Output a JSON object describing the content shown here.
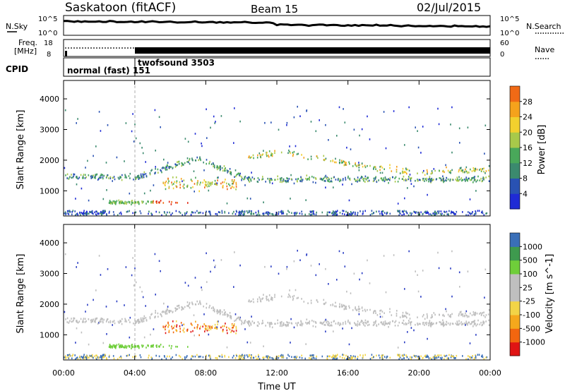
{
  "header": {
    "station": "Saskatoon (fitACF)",
    "beam": "Beam 15",
    "date": "02/Jul/2015"
  },
  "strips": {
    "nsky_label": "N.Sky",
    "nsky_ticks": [
      "10^5",
      "10^0"
    ],
    "nsearch_label": "N.Search",
    "nsearch_ticks": [
      "10^5",
      "10^0"
    ],
    "freq_label": [
      "Freq.",
      "[MHz]"
    ],
    "freq_ticks": [
      "18",
      "8"
    ],
    "nave_label": "Nave",
    "nave_ticks": [
      "60",
      "0"
    ],
    "cpid_label": "CPID",
    "cpid_segments": [
      "normal (fast) 151",
      "twofsound 3503"
    ]
  },
  "colors": {
    "power_scale": [
      "#1f2bd6",
      "#2952b3",
      "#3b8a6e",
      "#49a85a",
      "#a8c94a",
      "#f2d02e",
      "#f5a21c",
      "#f06a16",
      "#e02410"
    ],
    "velocity_scale": [
      "#e01414",
      "#f2660f",
      "#f5a81c",
      "#f2d447",
      "#bfbfbf",
      "#bfbfbf",
      "#6fce3a",
      "#3e9a4e",
      "#3a6fb8",
      "#2b3ec4"
    ]
  },
  "chart_data": [
    {
      "type": "heatmap",
      "title": "",
      "xlabel": "",
      "ylabel": "Slant Range [km]",
      "xlim": [
        0,
        24
      ],
      "ylim": [
        180,
        4600
      ],
      "x_tick_labels": [
        "00:00",
        "04:00",
        "08:00",
        "12:00",
        "16:00",
        "20:00",
        "00:00"
      ],
      "y_ticks": [
        1000,
        2000,
        3000,
        4000
      ],
      "colorbar_label": "Power [dB]",
      "colorbar_ticks": [
        4,
        8,
        12,
        16,
        20,
        24,
        28
      ],
      "colorbar_range": [
        0,
        32
      ]
    },
    {
      "type": "heatmap",
      "title": "",
      "xlabel": "Time UT",
      "ylabel": "Slant Range [km]",
      "xlim": [
        0,
        24
      ],
      "ylim": [
        180,
        4600
      ],
      "x_tick_labels": [
        "00:00",
        "04:00",
        "08:00",
        "12:00",
        "16:00",
        "20:00",
        "00:00"
      ],
      "y_ticks": [
        1000,
        2000,
        3000,
        4000
      ],
      "colorbar_label": "Velocity [m s^-1]",
      "colorbar_ticks": [
        "1000",
        "500",
        "100",
        "25",
        "-25",
        "-100",
        "-500",
        "-1000"
      ]
    }
  ]
}
